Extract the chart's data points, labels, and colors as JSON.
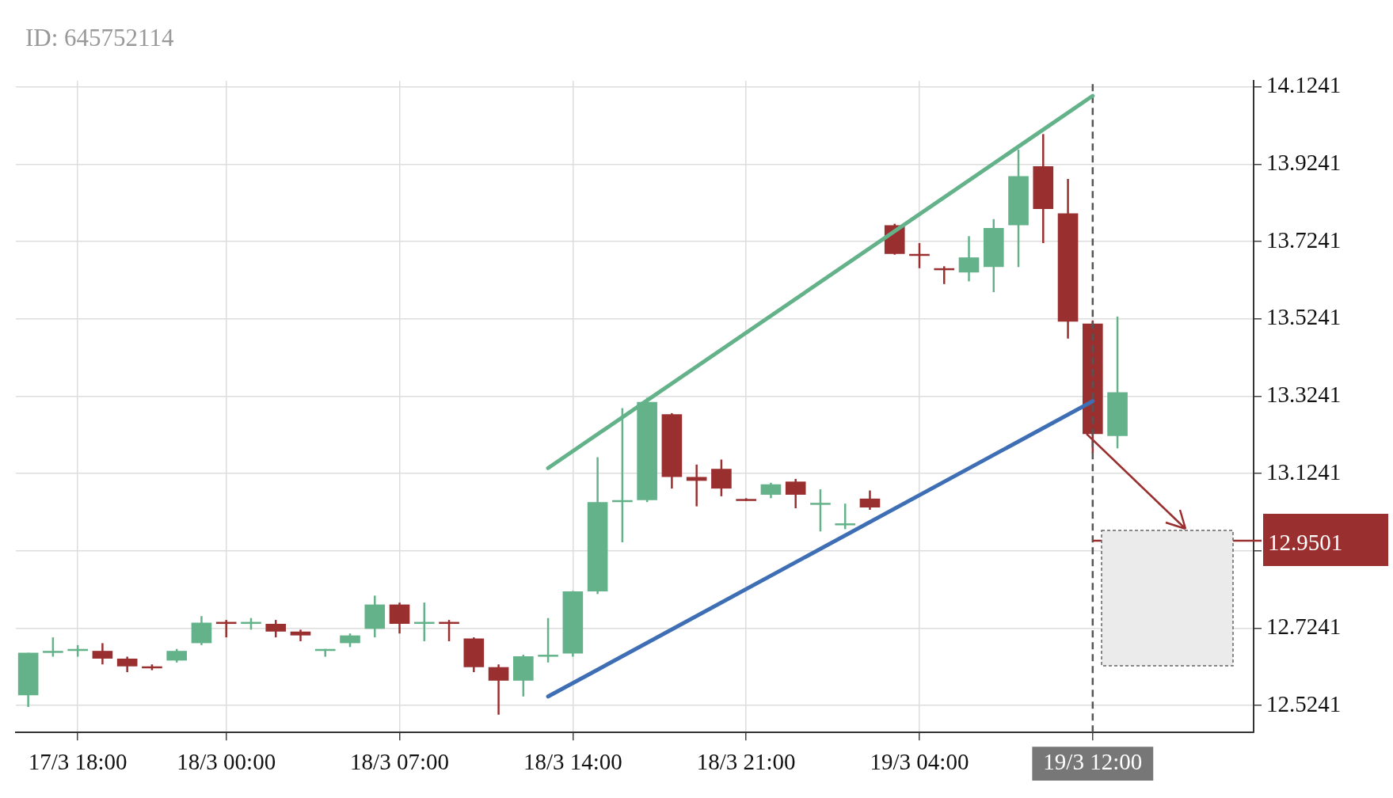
{
  "chart_data": {
    "type": "candlestick",
    "annotations": [
      "ID: 645752114"
    ],
    "categories": [
      null,
      null,
      "17/3 18:00",
      null,
      null,
      null,
      null,
      null,
      "18/3 00:00",
      null,
      null,
      null,
      null,
      null,
      null,
      "18/3 07:00",
      null,
      null,
      null,
      null,
      null,
      null,
      "18/3 14:00",
      null,
      null,
      null,
      null,
      null,
      null,
      "18/3 21:00",
      null,
      null,
      null,
      null,
      null,
      null,
      "19/3 04:00",
      null,
      null,
      null,
      null,
      null,
      null,
      "19/3 12:00",
      null,
      null,
      null,
      null,
      null,
      null
    ],
    "ohlc": [
      [
        12.55,
        12.66,
        12.52,
        12.66
      ],
      [
        12.66,
        12.7,
        12.65,
        12.665
      ],
      [
        12.665,
        12.68,
        12.65,
        12.67
      ],
      [
        12.665,
        12.685,
        12.63,
        12.645
      ],
      [
        12.645,
        12.65,
        12.61,
        12.625
      ],
      [
        12.625,
        12.63,
        12.615,
        12.62
      ],
      [
        12.64,
        12.67,
        12.635,
        12.665
      ],
      [
        12.685,
        12.755,
        12.68,
        12.738
      ],
      [
        12.74,
        12.745,
        12.7,
        12.735
      ],
      [
        12.735,
        12.75,
        12.72,
        12.74
      ],
      [
        12.735,
        12.745,
        12.7,
        12.715
      ],
      [
        12.715,
        12.72,
        12.69,
        12.705
      ],
      [
        12.665,
        12.67,
        12.65,
        12.67
      ],
      [
        12.685,
        12.71,
        12.675,
        12.705
      ],
      [
        12.722,
        12.808,
        12.7,
        12.785
      ],
      [
        12.785,
        12.79,
        12.71,
        12.735
      ],
      [
        12.735,
        12.79,
        12.69,
        12.74
      ],
      [
        12.74,
        12.745,
        12.69,
        12.735
      ],
      [
        12.697,
        12.7,
        12.61,
        12.623
      ],
      [
        12.623,
        12.63,
        12.5,
        12.588
      ],
      [
        12.588,
        12.655,
        12.547,
        12.651
      ],
      [
        12.651,
        12.75,
        12.635,
        12.655
      ],
      [
        12.658,
        12.82,
        12.65,
        12.819
      ],
      [
        12.819,
        13.166,
        12.812,
        13.05
      ],
      [
        13.05,
        13.293,
        12.946,
        13.055
      ],
      [
        13.055,
        13.32,
        13.05,
        13.309
      ],
      [
        13.277,
        13.28,
        13.085,
        13.115
      ],
      [
        13.115,
        13.147,
        13.039,
        13.105
      ],
      [
        13.136,
        13.16,
        13.065,
        13.085
      ],
      [
        13.058,
        13.06,
        13.053,
        13.055
      ],
      [
        13.069,
        13.1,
        13.06,
        13.096
      ],
      [
        13.103,
        13.11,
        13.034,
        13.069
      ],
      [
        13.045,
        13.083,
        12.974,
        13.048
      ],
      [
        12.99,
        13.046,
        12.98,
        12.995
      ],
      [
        13.059,
        13.08,
        13.03,
        13.036
      ],
      [
        13.766,
        13.77,
        13.69,
        13.692
      ],
      [
        13.692,
        13.72,
        13.655,
        13.687
      ],
      [
        13.655,
        13.66,
        13.614,
        13.65
      ],
      [
        13.644,
        13.738,
        13.621,
        13.683
      ],
      [
        13.658,
        13.782,
        13.593,
        13.759
      ],
      [
        13.766,
        13.962,
        13.658,
        13.893
      ],
      [
        13.919,
        14.002,
        13.72,
        13.808
      ],
      [
        13.797,
        13.886,
        13.473,
        13.517
      ],
      [
        13.512,
        13.52,
        13.177,
        13.226
      ],
      [
        13.221,
        13.53,
        13.189,
        13.334
      ],
      null,
      null,
      null,
      null,
      null
    ],
    "colors": [
      "#64b28a",
      "#64b28a",
      "#64b28a",
      "#9a2f30",
      "#9a2f30",
      "#9a2f30",
      "#64b28a",
      "#64b28a",
      "#9a2f30",
      "#64b28a",
      "#9a2f30",
      "#9a2f30",
      "#64b28a",
      "#64b28a",
      "#64b28a",
      "#9a2f30",
      "#64b28a",
      "#9a2f30",
      "#9a2f30",
      "#9a2f30",
      "#64b28a",
      "#64b28a",
      "#64b28a",
      "#64b28a",
      "#64b28a",
      "#64b28a",
      "#9a2f30",
      "#9a2f30",
      "#9a2f30",
      "#9a2f30",
      "#64b28a",
      "#9a2f30",
      "#64b28a",
      "#64b28a",
      "#9a2f30",
      "#9a2f30",
      "#9a2f30",
      "#9a2f30",
      "#64b28a",
      "#64b28a",
      "#64b28a",
      "#9a2f30",
      "#9a2f30",
      "#9a2f30",
      "#64b28a",
      null,
      null,
      null,
      null,
      null
    ],
    "series": [
      {
        "type": "line",
        "color": "#64b28a",
        "values": [
          null,
          null,
          null,
          null,
          null,
          null,
          null,
          null,
          null,
          null,
          null,
          null,
          null,
          null,
          null,
          null,
          null,
          null,
          null,
          null,
          null,
          13.138,
          null,
          null,
          null,
          null,
          null,
          null,
          null,
          null,
          null,
          null,
          null,
          null,
          null,
          null,
          null,
          null,
          null,
          null,
          null,
          null,
          null,
          14.101,
          null,
          null,
          null,
          null,
          null,
          null
        ]
      },
      {
        "type": "line",
        "color": "#3e6fb5",
        "values": [
          null,
          null,
          null,
          null,
          null,
          null,
          null,
          null,
          null,
          null,
          null,
          null,
          null,
          null,
          null,
          null,
          null,
          null,
          null,
          null,
          null,
          12.547,
          null,
          null,
          null,
          null,
          null,
          null,
          null,
          null,
          null,
          null,
          null,
          null,
          null,
          null,
          null,
          null,
          null,
          null,
          null,
          null,
          null,
          13.311,
          null,
          null,
          null,
          null,
          null,
          null
        ]
      }
    ],
    "ylim": [
      12.454,
      14.14
    ],
    "yticks": [
      12.5241,
      12.7241,
      {
        "value": 12.9241,
        "label": null
      },
      13.1241,
      13.3241,
      13.5241,
      13.7241,
      13.9241,
      14.1241
    ],
    "ref_lines": [
      {
        "axis": "x",
        "value": "19/3 12:00",
        "color": "#555555",
        "line_style": "dashed"
      },
      {
        "axis": "y",
        "value": 12.9501,
        "label": "12.9501",
        "color": "#9a2f30"
      }
    ],
    "grid": true,
    "legend": false
  }
}
